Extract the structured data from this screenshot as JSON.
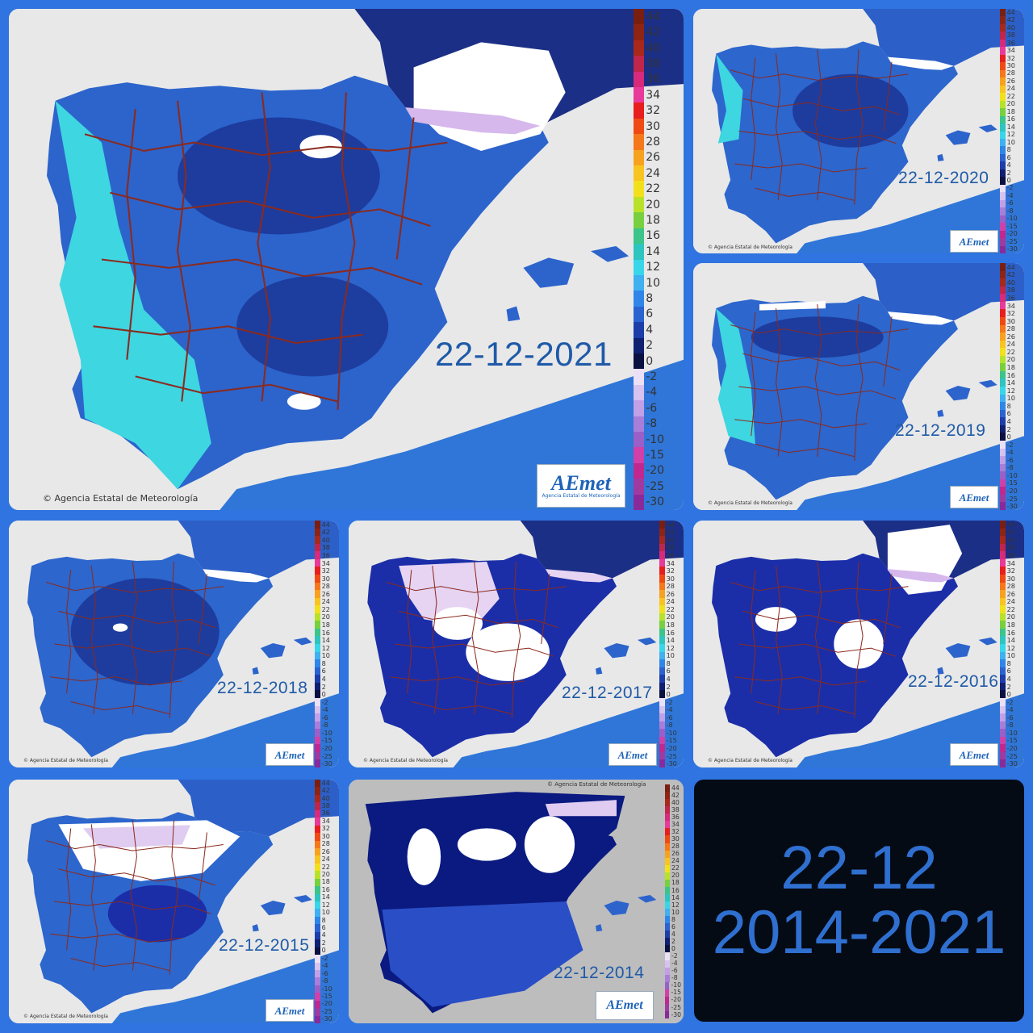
{
  "credit": "Agencia Estatal de Meteorología",
  "logo": {
    "brand": "AEmet",
    "sub": "Agencia Estatal de Meteorología"
  },
  "legend_values": [
    "44",
    "42",
    "40",
    "38",
    "36",
    "34",
    "32",
    "30",
    "28",
    "26",
    "24",
    "22",
    "20",
    "18",
    "16",
    "14",
    "12",
    "10",
    "8",
    "6",
    "4",
    "2",
    "0",
    "-2",
    "-4",
    "-6",
    "-8",
    "-10",
    "-15",
    "-20",
    "-25",
    "-30"
  ],
  "legend_colors": [
    "#7a1f10",
    "#8e2414",
    "#a8281a",
    "#c0254a",
    "#d82a7a",
    "#e83a9a",
    "#e81e1e",
    "#f04a14",
    "#f5781a",
    "#f7a21e",
    "#f8c420",
    "#f3e01c",
    "#b8e22a",
    "#78d040",
    "#3cc48a",
    "#2ec4c0",
    "#38d6e8",
    "#3fb0f0",
    "#2f86e8",
    "#2a62d0",
    "#1d3ea8",
    "#102070",
    "#0a1040",
    "#ece0f6",
    "#d8c2ee",
    "#c2a0e6",
    "#a87ed8",
    "#9a60c8",
    "#d040a8",
    "#c02890",
    "#a03aa0",
    "#8a2a9a"
  ],
  "color_meaning": {
    "cold_white": "#ffffff",
    "sea_gray": "#e6e6e6",
    "land_border": "#8b2a1e"
  },
  "maps": [
    {
      "date": "22-12-2021",
      "tone": "mid"
    },
    {
      "date": "22-12-2020",
      "tone": "mid"
    },
    {
      "date": "22-12-2019",
      "tone": "mid"
    },
    {
      "date": "22-12-2018",
      "tone": "mid"
    },
    {
      "date": "22-12-2017",
      "tone": "dark"
    },
    {
      "date": "22-12-2016",
      "tone": "dark"
    },
    {
      "date": "22-12-2015",
      "tone": "dark"
    },
    {
      "date": "22-12-2014",
      "tone": "darkest"
    }
  ],
  "summary": {
    "line1": "22-12",
    "line2": "2014-2021"
  }
}
